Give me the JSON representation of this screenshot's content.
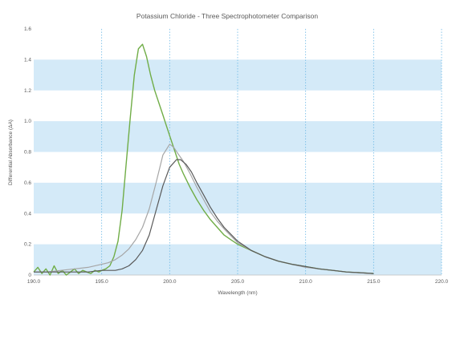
{
  "chart_data": {
    "type": "line",
    "title": "Potassium Chloride - Three Spectrophotometer Comparison",
    "xlabel": "Wavelength (nm)",
    "ylabel": "Differential Absorbance (ΔA)",
    "xlim": [
      190,
      215
    ],
    "ylim": [
      0,
      1.6
    ],
    "x_ticks": [
      "190.0",
      "195.0",
      "200.0",
      "205.0",
      "210.0",
      "215.0",
      "220.0"
    ],
    "y_ticks": [
      "0",
      "0.2",
      "0.4",
      "0.6",
      "0.8",
      "1.0",
      "1.2",
      "1.4",
      "1.6"
    ],
    "grid": {
      "vertical": "dotted",
      "horizontal_bands": [
        [
          0,
          0.2
        ],
        [
          0.4,
          0.6
        ],
        [
          0.8,
          1.0
        ],
        [
          1.2,
          1.4
        ]
      ]
    },
    "legend": "none",
    "colors": {
      "band": "#d4eaf8",
      "vgrid": "#6cb8e6",
      "axis": "#bfbfbf",
      "text": "#595959"
    },
    "series": [
      {
        "color": "#70ad47",
        "x": [
          190.0,
          190.3,
          190.6,
          190.9,
          191.2,
          191.5,
          191.8,
          192.1,
          192.4,
          192.7,
          193.0,
          193.3,
          193.6,
          193.9,
          194.2,
          194.5,
          194.8,
          195.0,
          195.3,
          195.6,
          195.9,
          196.2,
          196.5,
          196.8,
          197.1,
          197.4,
          197.7,
          198.0,
          198.3,
          198.6,
          198.9,
          199.2,
          199.5,
          199.8,
          200.1,
          200.4,
          200.7,
          201.0,
          201.5,
          202.0,
          202.5,
          203.0,
          203.5,
          204.0,
          204.5,
          205.0,
          205.5,
          206.0,
          207.0,
          208.0,
          209.0,
          210.0,
          211.0,
          212.0,
          213.0,
          214.0,
          215.0
        ],
        "y": [
          0.02,
          0.05,
          0.01,
          0.04,
          0.0,
          0.06,
          0.01,
          0.03,
          0.0,
          0.02,
          0.04,
          0.01,
          0.03,
          0.02,
          0.01,
          0.03,
          0.02,
          0.03,
          0.04,
          0.06,
          0.12,
          0.22,
          0.42,
          0.72,
          1.02,
          1.3,
          1.47,
          1.5,
          1.42,
          1.3,
          1.2,
          1.12,
          1.04,
          0.96,
          0.88,
          0.8,
          0.72,
          0.66,
          0.57,
          0.49,
          0.42,
          0.36,
          0.31,
          0.26,
          0.23,
          0.2,
          0.18,
          0.16,
          0.12,
          0.09,
          0.07,
          0.055,
          0.04,
          0.03,
          0.02,
          0.015,
          0.01
        ]
      },
      {
        "color": "#a6a6a6",
        "x": [
          190.0,
          191.0,
          192.0,
          193.0,
          194.0,
          195.0,
          195.5,
          196.0,
          196.5,
          197.0,
          197.5,
          198.0,
          198.5,
          199.0,
          199.5,
          200.0,
          200.3,
          200.6,
          201.0,
          201.5,
          202.0,
          202.5,
          203.0,
          203.5,
          204.0,
          205.0,
          206.0,
          207.0,
          208.0,
          209.0,
          210.0,
          211.0,
          212.0,
          213.0,
          214.0,
          215.0
        ],
        "y": [
          0.02,
          0.02,
          0.03,
          0.04,
          0.05,
          0.07,
          0.08,
          0.1,
          0.13,
          0.17,
          0.23,
          0.31,
          0.43,
          0.6,
          0.78,
          0.85,
          0.83,
          0.79,
          0.74,
          0.66,
          0.57,
          0.49,
          0.41,
          0.35,
          0.3,
          0.21,
          0.16,
          0.12,
          0.09,
          0.07,
          0.05,
          0.04,
          0.03,
          0.02,
          0.015,
          0.01
        ]
      },
      {
        "color": "#595959",
        "x": [
          190.0,
          192.0,
          194.0,
          195.0,
          196.0,
          196.5,
          197.0,
          197.5,
          198.0,
          198.5,
          199.0,
          199.5,
          200.0,
          200.5,
          200.8,
          201.2,
          201.6,
          202.0,
          202.5,
          203.0,
          203.5,
          204.0,
          205.0,
          206.0,
          207.0,
          208.0,
          209.0,
          210.0,
          211.0,
          212.0,
          213.0,
          214.0,
          215.0
        ],
        "y": [
          0.02,
          0.02,
          0.02,
          0.03,
          0.03,
          0.04,
          0.06,
          0.1,
          0.16,
          0.26,
          0.42,
          0.58,
          0.7,
          0.75,
          0.75,
          0.72,
          0.67,
          0.6,
          0.52,
          0.44,
          0.37,
          0.31,
          0.22,
          0.16,
          0.12,
          0.09,
          0.07,
          0.055,
          0.04,
          0.03,
          0.02,
          0.015,
          0.01
        ]
      }
    ]
  }
}
